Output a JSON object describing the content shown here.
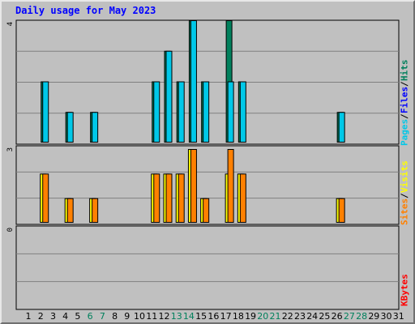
{
  "title": "Daily usage for May 2023",
  "colors": {
    "hits": "#00805c",
    "files": "#0000ff",
    "pages": "#00c8e8",
    "visits": "#ffff00",
    "sites": "#ff8000",
    "kbytes": "#ff0000",
    "label_default": "#000000",
    "label_weekend": "#00805c",
    "plot_bg": "#c0c0c0",
    "grid": "#808080"
  },
  "legends": {
    "top": {
      "pages": "Pages",
      "files": "Files",
      "hits": "Hits",
      "sep": "/"
    },
    "middle": {
      "sites": "Sites",
      "visits": "Visits",
      "sep": "/"
    },
    "bottom": {
      "kbytes": "KBytes"
    }
  },
  "chart_data": [
    {
      "type": "bar",
      "panel": "hits-files-pages",
      "axis_max_label": "4",
      "ylim": [
        0,
        4
      ],
      "categories": [
        "1",
        "2",
        "3",
        "4",
        "5",
        "6",
        "7",
        "8",
        "9",
        "10",
        "11",
        "12",
        "13",
        "14",
        "15",
        "16",
        "17",
        "18",
        "19",
        "20",
        "21",
        "22",
        "23",
        "24",
        "25",
        "26",
        "27",
        "28",
        "29",
        "30",
        "31"
      ],
      "series": [
        {
          "name": "Hits",
          "values": [
            0,
            2,
            0,
            1,
            0,
            1,
            0,
            0,
            0,
            0,
            2,
            3,
            2,
            4,
            2,
            0,
            4,
            2,
            0,
            0,
            0,
            0,
            0,
            0,
            0,
            1,
            0,
            0,
            0,
            0,
            0
          ]
        },
        {
          "name": "Files",
          "values": [
            0,
            0,
            0,
            0,
            0,
            0,
            0,
            0,
            0,
            0,
            0,
            0,
            0,
            0,
            0,
            0,
            0,
            0,
            0,
            0,
            0,
            0,
            0,
            0,
            0,
            0,
            0,
            0,
            0,
            0,
            0
          ]
        },
        {
          "name": "Pages",
          "values": [
            0,
            2,
            0,
            1,
            0,
            1,
            0,
            0,
            0,
            0,
            2,
            3,
            2,
            4,
            2,
            0,
            2,
            2,
            0,
            0,
            0,
            0,
            0,
            0,
            0,
            1,
            0,
            0,
            0,
            0,
            0
          ]
        }
      ]
    },
    {
      "type": "bar",
      "panel": "visits-sites",
      "axis_max_label": "3",
      "ylim": [
        0,
        3
      ],
      "series": [
        {
          "name": "Visits",
          "values": [
            0,
            2,
            0,
            1,
            0,
            1,
            0,
            0,
            0,
            0,
            2,
            2,
            2,
            3,
            1,
            0,
            2,
            2,
            0,
            0,
            0,
            0,
            0,
            0,
            0,
            1,
            0,
            0,
            0,
            0,
            0
          ]
        },
        {
          "name": "Sites",
          "values": [
            0,
            2,
            0,
            1,
            0,
            1,
            0,
            0,
            0,
            0,
            2,
            2,
            2,
            3,
            1,
            0,
            3,
            2,
            0,
            0,
            0,
            0,
            0,
            0,
            0,
            1,
            0,
            0,
            0,
            0,
            0
          ]
        }
      ]
    },
    {
      "type": "bar",
      "panel": "kbytes",
      "axis_max_label": "0",
      "series": [
        {
          "name": "KBytes",
          "values": [
            0,
            0,
            0,
            0,
            0,
            0,
            0,
            0,
            0,
            0,
            0,
            0,
            0,
            0,
            0,
            0,
            0,
            0,
            0,
            0,
            0,
            0,
            0,
            0,
            0,
            0,
            0,
            0,
            0,
            0,
            0
          ]
        }
      ]
    }
  ],
  "weekend_days": [
    "6",
    "7",
    "13",
    "14",
    "20",
    "21",
    "27",
    "28"
  ]
}
